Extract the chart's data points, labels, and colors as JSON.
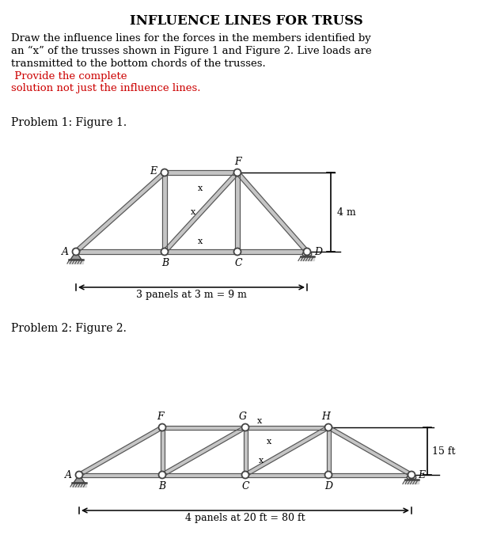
{
  "title": "INFLUENCE LINES FOR TRUSS",
  "title_fontsize": 12,
  "body_black": "Draw the influence lines for the forces in the members identified by\nan “x” of the trusses shown in Figure 1 and Figure 2. Live loads are\ntransmitted to the bottom chords of the trusses.",
  "body_red": " Provide the complete\nsolution not just the influence lines.",
  "problem1_label": "Problem 1: Figure 1.",
  "problem2_label": "Problem 2: Figure 2.",
  "dim1_text": "3 panels at 3 m = 9 m",
  "dim2_text": "4 panels at 20 ft = 80 ft",
  "height1_text": "4 m",
  "height2_text": "15 ft"
}
